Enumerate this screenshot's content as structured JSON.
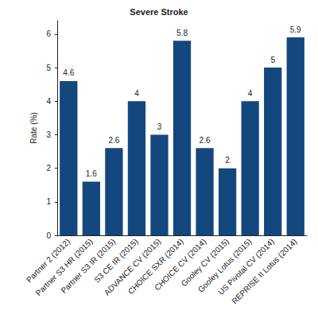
{
  "chart_data": {
    "type": "bar",
    "title": "Severe Stroke",
    "y_label": "Rate (%)",
    "categories": [
      "Partner 2 (2012)",
      "Partner S3 HR (2015)",
      "Partner S3 IR (2015)",
      "S3 CE IR (2015)",
      "ADVANCE CV (2015)",
      "CHOICE SXR (2014)",
      "CHOICE CV (2014)",
      "Gooley CV (2015)",
      "Gooley Lotus (2015)",
      "US Pivotal CV (2014)",
      "REPRISE II Lotus (2014)"
    ],
    "values": [
      4.6,
      1.6,
      2.6,
      4,
      3,
      5.8,
      2.6,
      2,
      4,
      5,
      5.9
    ],
    "color": "#14477d",
    "ylim": [
      0,
      6.4
    ],
    "yticks": [
      0,
      1,
      2,
      3,
      4,
      5,
      6
    ],
    "grid": false,
    "data_labels": true
  }
}
